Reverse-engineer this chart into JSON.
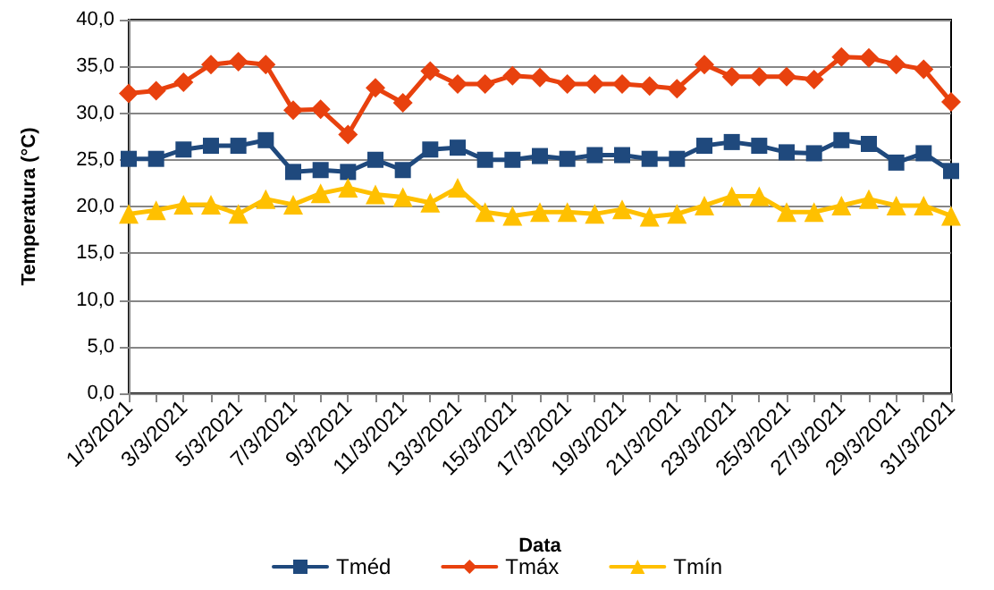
{
  "chart_data": {
    "type": "line",
    "xlabel": "Data",
    "ylabel": "Temperatura (°C)",
    "categories": [
      "1/3/2021",
      null,
      "3/3/2021",
      null,
      "5/3/2021",
      null,
      "7/3/2021",
      null,
      "9/3/2021",
      null,
      "11/3/2021",
      null,
      "13/3/2021",
      null,
      "15/3/2021",
      null,
      "17/3/2021",
      null,
      "19/3/2021",
      null,
      "21/3/2021",
      null,
      "23/3/2021",
      null,
      "25/3/2021",
      null,
      "27/3/2021",
      null,
      "29/3/2021",
      null,
      "31/3/2021"
    ],
    "series": [
      {
        "name": "Tméd",
        "color": "#1f497d",
        "marker": "square",
        "values": [
          25.1,
          25.1,
          26.1,
          26.5,
          26.5,
          27.1,
          23.7,
          23.9,
          23.7,
          25.0,
          23.9,
          26.1,
          26.3,
          25.0,
          25.0,
          25.4,
          25.1,
          25.5,
          25.5,
          25.1,
          25.1,
          26.5,
          26.9,
          26.5,
          25.8,
          25.7,
          27.1,
          26.7,
          24.7,
          25.7,
          23.8
        ]
      },
      {
        "name": "Tmáx",
        "color": "#e8410e",
        "marker": "diamond",
        "values": [
          32.1,
          32.4,
          33.3,
          35.2,
          35.5,
          35.2,
          30.3,
          30.4,
          27.7,
          32.7,
          31.1,
          34.5,
          33.1,
          33.1,
          34.0,
          33.8,
          33.1,
          33.1,
          33.1,
          32.9,
          32.6,
          35.2,
          33.9,
          33.9,
          33.9,
          33.6,
          36.0,
          35.9,
          35.2,
          34.7,
          31.2
        ]
      },
      {
        "name": "Tmín",
        "color": "#ffc000",
        "marker": "triangle",
        "values": [
          19.2,
          19.6,
          20.2,
          20.2,
          19.2,
          20.8,
          20.2,
          21.4,
          22.0,
          21.3,
          21.0,
          20.4,
          22.0,
          19.4,
          19.0,
          19.4,
          19.4,
          19.2,
          19.7,
          18.9,
          19.2,
          20.1,
          21.1,
          21.1,
          19.4,
          19.4,
          20.1,
          20.8,
          20.1,
          20.1,
          19.0
        ]
      }
    ],
    "ylim": [
      0,
      40
    ],
    "yticks": [
      {
        "value": 0,
        "label": "0,0"
      },
      {
        "value": 5,
        "label": "5,0"
      },
      {
        "value": 10,
        "label": "10,0"
      },
      {
        "value": 15,
        "label": "15,0"
      },
      {
        "value": 20,
        "label": "20,0"
      },
      {
        "value": 25,
        "label": "25,0"
      },
      {
        "value": 30,
        "label": "30,0"
      },
      {
        "value": 35,
        "label": "35,0"
      },
      {
        "value": 40,
        "label": "40,0"
      }
    ],
    "grid": "y",
    "legend": "bottom",
    "line_style": "solid"
  }
}
